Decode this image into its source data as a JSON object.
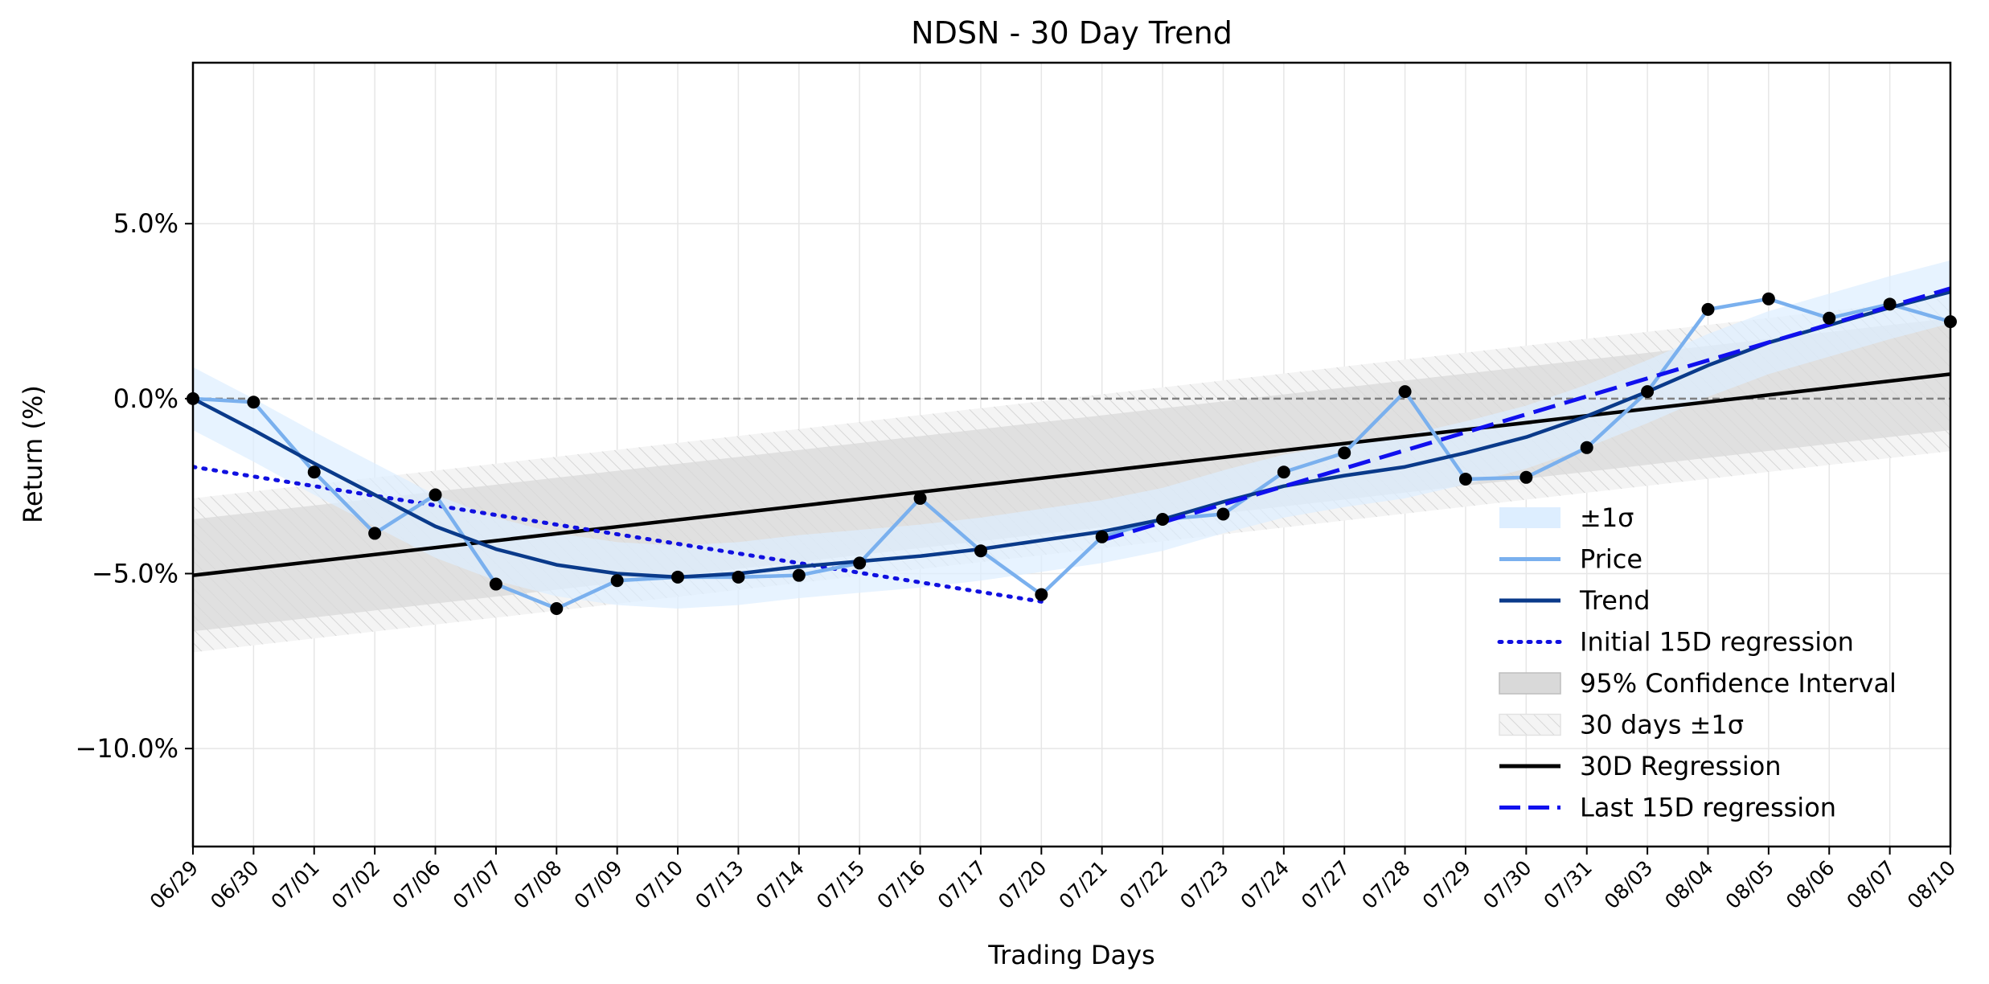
{
  "chart_data": {
    "type": "line",
    "title": "NDSN - 30 Day Trend",
    "xlabel": "Trading Days",
    "ylabel": "Return (%)",
    "categories": [
      "06/29",
      "06/30",
      "07/01",
      "07/02",
      "07/06",
      "07/07",
      "07/08",
      "07/09",
      "07/10",
      "07/13",
      "07/14",
      "07/15",
      "07/16",
      "07/17",
      "07/20",
      "07/21",
      "07/22",
      "07/23",
      "07/24",
      "07/27",
      "07/28",
      "07/29",
      "07/30",
      "07/31",
      "08/03",
      "08/04",
      "08/05",
      "08/06",
      "08/07",
      "08/10"
    ],
    "ylim": [
      -12.8,
      9.6
    ],
    "y_ticks": [
      5,
      0,
      -5,
      -10
    ],
    "y_tick_labels": [
      "5.0%",
      "0.0%",
      "−5.0%",
      "−10.0%"
    ],
    "grid": true,
    "legend_position": "lower-right",
    "colors": {
      "price": "#7ab0ee",
      "trend": "#0a3a8a",
      "initial_reg": "#1010e0",
      "last_reg": "#1010ee",
      "reg30": "#000000",
      "band": "#ddeeff",
      "ci": "#d9d9d9",
      "sigma30": "#f2f2f2",
      "zero": "#808080",
      "marker": "#000000"
    },
    "series": [
      {
        "name": "Price",
        "key": "price",
        "values": [
          0.0,
          -0.1,
          -2.1,
          -3.85,
          -2.75,
          -5.3,
          -6.0,
          -5.2,
          -5.1,
          -5.1,
          -5.05,
          -4.7,
          -2.85,
          -4.35,
          -5.6,
          -3.95,
          -3.45,
          -3.3,
          -2.1,
          -1.55,
          0.2,
          -2.3,
          -2.25,
          -1.4,
          0.2,
          2.55,
          2.85,
          2.3,
          2.7,
          2.2
        ]
      },
      {
        "name": "Trend",
        "key": "trend",
        "values": [
          0.0,
          -0.9,
          -1.85,
          -2.75,
          -3.65,
          -4.3,
          -4.75,
          -5.0,
          -5.1,
          -5.0,
          -4.8,
          -4.65,
          -4.5,
          -4.3,
          -4.05,
          -3.8,
          -3.45,
          -2.95,
          -2.5,
          -2.2,
          -1.95,
          -1.55,
          -1.1,
          -0.5,
          0.2,
          0.95,
          1.6,
          2.1,
          2.6,
          3.05
        ]
      },
      {
        "name": "Initial 15D regression",
        "key": "initial_reg",
        "x_range": [
          0,
          14
        ],
        "y_range": [
          -1.95,
          -5.8
        ]
      },
      {
        "name": "Last 15D regression",
        "key": "last_reg",
        "x_range": [
          15,
          29
        ],
        "y_range": [
          -4.05,
          3.15
        ]
      },
      {
        "name": "30D Regression",
        "key": "reg30",
        "x_range": [
          0,
          29
        ],
        "y_range": [
          -5.05,
          0.7
        ]
      },
      {
        "name": "±1σ",
        "key": "band",
        "band_halfwidth": 0.9
      },
      {
        "name": "95% Confidence Interval",
        "key": "ci",
        "band_halfwidth": 1.6
      },
      {
        "name": "30 days ±1σ",
        "key": "sigma30",
        "band_halfwidth": 2.2
      }
    ],
    "legend_order": [
      "band",
      "price",
      "trend",
      "initial_reg",
      "ci",
      "sigma30",
      "reg30",
      "last_reg"
    ]
  }
}
